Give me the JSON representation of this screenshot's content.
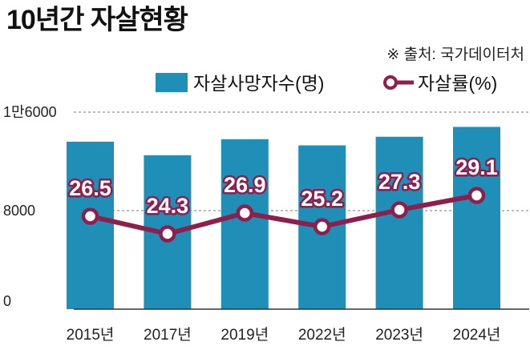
{
  "chart_data": {
    "type": "bar",
    "title": "10년간 자살현황",
    "source": "※ 출처: 국가데이터처",
    "categories": [
      "2015년",
      "2017년",
      "2019년",
      "2022년",
      "2023년",
      "2024년"
    ],
    "y_ticks": [
      {
        "value": 0,
        "label": "0"
      },
      {
        "value": 8000,
        "label": "8000"
      },
      {
        "value": 16000,
        "label": "1만6000"
      }
    ],
    "ylim": [
      0,
      16000
    ],
    "grid": true,
    "legend_position": "top-right",
    "series": [
      {
        "name": "자살사망자수(명)",
        "type": "bar",
        "color": "#1f8fb8",
        "values": [
          13600,
          12500,
          13800,
          13300,
          14000,
          14800
        ]
      },
      {
        "name": "자살률(%)",
        "type": "line",
        "color": "#8e1f4d",
        "values": [
          26.5,
          24.3,
          26.9,
          25.2,
          27.3,
          29.1
        ],
        "labels": [
          "26.5",
          "24.3",
          "26.9",
          "25.2",
          "27.3",
          "29.1"
        ]
      }
    ]
  }
}
